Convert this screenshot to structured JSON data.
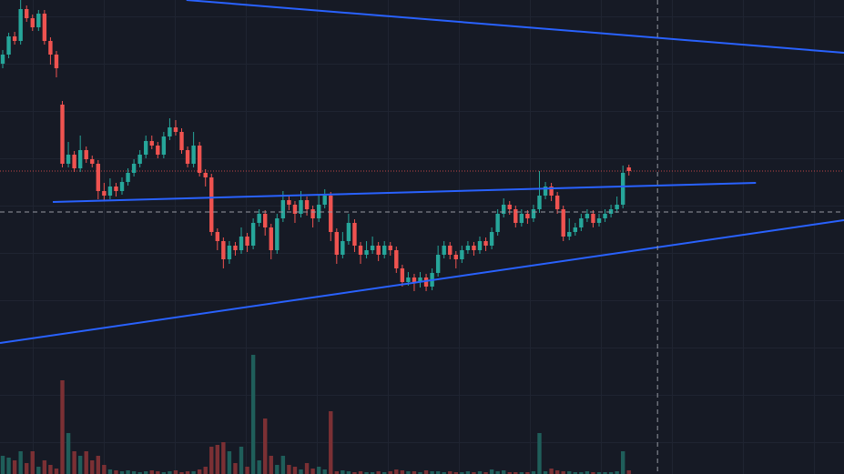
{
  "chart_data": {
    "type": "candlestick",
    "candles": [
      [
        451,
        466,
        446,
        461
      ],
      [
        461,
        485,
        457,
        481
      ],
      [
        481,
        486,
        472,
        476
      ],
      [
        476,
        521,
        472,
        511
      ],
      [
        511,
        515,
        497,
        501
      ],
      [
        501,
        505,
        487,
        491
      ],
      [
        491,
        510,
        487,
        506
      ],
      [
        506,
        510,
        472,
        476
      ],
      [
        476,
        480,
        450,
        461
      ],
      [
        461,
        465,
        436,
        446
      ],
      [
        406,
        410,
        337,
        341
      ],
      [
        341,
        365,
        337,
        351
      ],
      [
        351,
        355,
        332,
        336
      ],
      [
        336,
        372,
        332,
        356
      ],
      [
        356,
        360,
        342,
        346
      ],
      [
        346,
        350,
        337,
        341
      ],
      [
        341,
        345,
        302,
        311
      ],
      [
        311,
        320,
        300,
        306
      ],
      [
        306,
        325,
        302,
        316
      ],
      [
        316,
        320,
        305,
        311
      ],
      [
        311,
        326,
        307,
        321
      ],
      [
        321,
        336,
        317,
        331
      ],
      [
        331,
        346,
        327,
        341
      ],
      [
        341,
        356,
        337,
        351
      ],
      [
        351,
        372,
        347,
        366
      ],
      [
        366,
        372,
        357,
        361
      ],
      [
        361,
        365,
        347,
        351
      ],
      [
        351,
        376,
        347,
        371
      ],
      [
        371,
        391,
        367,
        381
      ],
      [
        381,
        389,
        372,
        376
      ],
      [
        376,
        380,
        352,
        356
      ],
      [
        356,
        360,
        337,
        341
      ],
      [
        341,
        376,
        337,
        361
      ],
      [
        361,
        365,
        327,
        331
      ],
      [
        331,
        335,
        316,
        326
      ],
      [
        326,
        330,
        262,
        266
      ],
      [
        266,
        270,
        246,
        256
      ],
      [
        256,
        260,
        226,
        236
      ],
      [
        236,
        256,
        231,
        251
      ],
      [
        251,
        255,
        240,
        246
      ],
      [
        246,
        271,
        242,
        261
      ],
      [
        261,
        265,
        244,
        251
      ],
      [
        251,
        281,
        247,
        276
      ],
      [
        276,
        291,
        272,
        286
      ],
      [
        286,
        290,
        262,
        271
      ],
      [
        271,
        275,
        236,
        246
      ],
      [
        246,
        286,
        242,
        281
      ],
      [
        281,
        311,
        277,
        301
      ],
      [
        301,
        306,
        290,
        296
      ],
      [
        296,
        300,
        276,
        286
      ],
      [
        286,
        311,
        282,
        301
      ],
      [
        301,
        305,
        284,
        291
      ],
      [
        291,
        295,
        271,
        281
      ],
      [
        281,
        306,
        277,
        296
      ],
      [
        296,
        313,
        292,
        306
      ],
      [
        306,
        310,
        256,
        266
      ],
      [
        266,
        270,
        231,
        241
      ],
      [
        241,
        266,
        237,
        256
      ],
      [
        256,
        286,
        252,
        276
      ],
      [
        276,
        280,
        244,
        251
      ],
      [
        251,
        255,
        231,
        241
      ],
      [
        241,
        256,
        237,
        246
      ],
      [
        246,
        261,
        242,
        251
      ],
      [
        251,
        255,
        234,
        241
      ],
      [
        241,
        256,
        237,
        251
      ],
      [
        251,
        255,
        240,
        246
      ],
      [
        246,
        250,
        221,
        226
      ],
      [
        226,
        230,
        206,
        211
      ],
      [
        211,
        222,
        207,
        216
      ],
      [
        216,
        220,
        201,
        211
      ],
      [
        211,
        222,
        205,
        216
      ],
      [
        216,
        220,
        201,
        206
      ],
      [
        206,
        226,
        202,
        221
      ],
      [
        221,
        251,
        217,
        241
      ],
      [
        241,
        256,
        237,
        251
      ],
      [
        251,
        255,
        236,
        241
      ],
      [
        241,
        245,
        226,
        236
      ],
      [
        236,
        251,
        232,
        246
      ],
      [
        246,
        256,
        242,
        251
      ],
      [
        251,
        255,
        240,
        246
      ],
      [
        246,
        261,
        242,
        256
      ],
      [
        256,
        260,
        245,
        251
      ],
      [
        251,
        271,
        247,
        266
      ],
      [
        266,
        291,
        262,
        286
      ],
      [
        286,
        303,
        282,
        296
      ],
      [
        296,
        300,
        285,
        291
      ],
      [
        291,
        295,
        271,
        276
      ],
      [
        276,
        291,
        272,
        286
      ],
      [
        286,
        290,
        275,
        281
      ],
      [
        281,
        296,
        277,
        291
      ],
      [
        291,
        333,
        287,
        306
      ],
      [
        306,
        321,
        302,
        316
      ],
      [
        316,
        320,
        300,
        306
      ],
      [
        306,
        310,
        286,
        291
      ],
      [
        291,
        295,
        256,
        261
      ],
      [
        261,
        281,
        257,
        266
      ],
      [
        266,
        276,
        262,
        271
      ],
      [
        271,
        286,
        267,
        281
      ],
      [
        281,
        291,
        277,
        286
      ],
      [
        286,
        290,
        271,
        276
      ],
      [
        276,
        286,
        272,
        281
      ],
      [
        281,
        291,
        277,
        286
      ],
      [
        286,
        296,
        282,
        291
      ],
      [
        291,
        305,
        287,
        296
      ],
      [
        296,
        339,
        292,
        331
      ],
      [
        337,
        340,
        328,
        333
      ]
    ],
    "volume": [
      20,
      18,
      15,
      25,
      12,
      25,
      8,
      15,
      10,
      6,
      103,
      45,
      25,
      20,
      25,
      15,
      20,
      10,
      5,
      4,
      3,
      4,
      3,
      2,
      3,
      4,
      3,
      2,
      3,
      4,
      2,
      3,
      3,
      5,
      8,
      30,
      32,
      35,
      25,
      12,
      30,
      8,
      131,
      15,
      61,
      20,
      10,
      20,
      10,
      8,
      5,
      12,
      6,
      8,
      5,
      69,
      3,
      4,
      3,
      2,
      3,
      2,
      2,
      3,
      2,
      3,
      5,
      4,
      3,
      3,
      2,
      4,
      3,
      3,
      2,
      3,
      2,
      2,
      3,
      2,
      3,
      2,
      5,
      3,
      4,
      2,
      2,
      2,
      2,
      3,
      45,
      3,
      6,
      4,
      3,
      3,
      2,
      2,
      3,
      2,
      2,
      2,
      2,
      3,
      25,
      4
    ],
    "xlim": [
      -0.46,
      141.07
    ],
    "ylim": [
      0,
      521
    ],
    "y2lim": [
      0,
      521
    ],
    "up_color": "#26a69a",
    "down_color": "#ef5350",
    "volume_up_color": "#1f5e5a",
    "volume_down_color": "#7b3034",
    "trendline_color": "#2962ff",
    "trendlines": [
      {
        "x": [
          30.8,
          141.07
        ],
        "y": [
          521,
          463
        ]
      },
      {
        "x": [
          8.4,
          126.3
        ],
        "y": [
          299,
          320
        ]
      },
      {
        "x": [
          -0.46,
          141.07
        ],
        "y": [
          144,
          279
        ]
      }
    ],
    "price_line": {
      "value": 333,
      "color": "#ef5350"
    },
    "crosshair": {
      "x": 109.8,
      "y": 288,
      "color": "#9598a1"
    }
  }
}
